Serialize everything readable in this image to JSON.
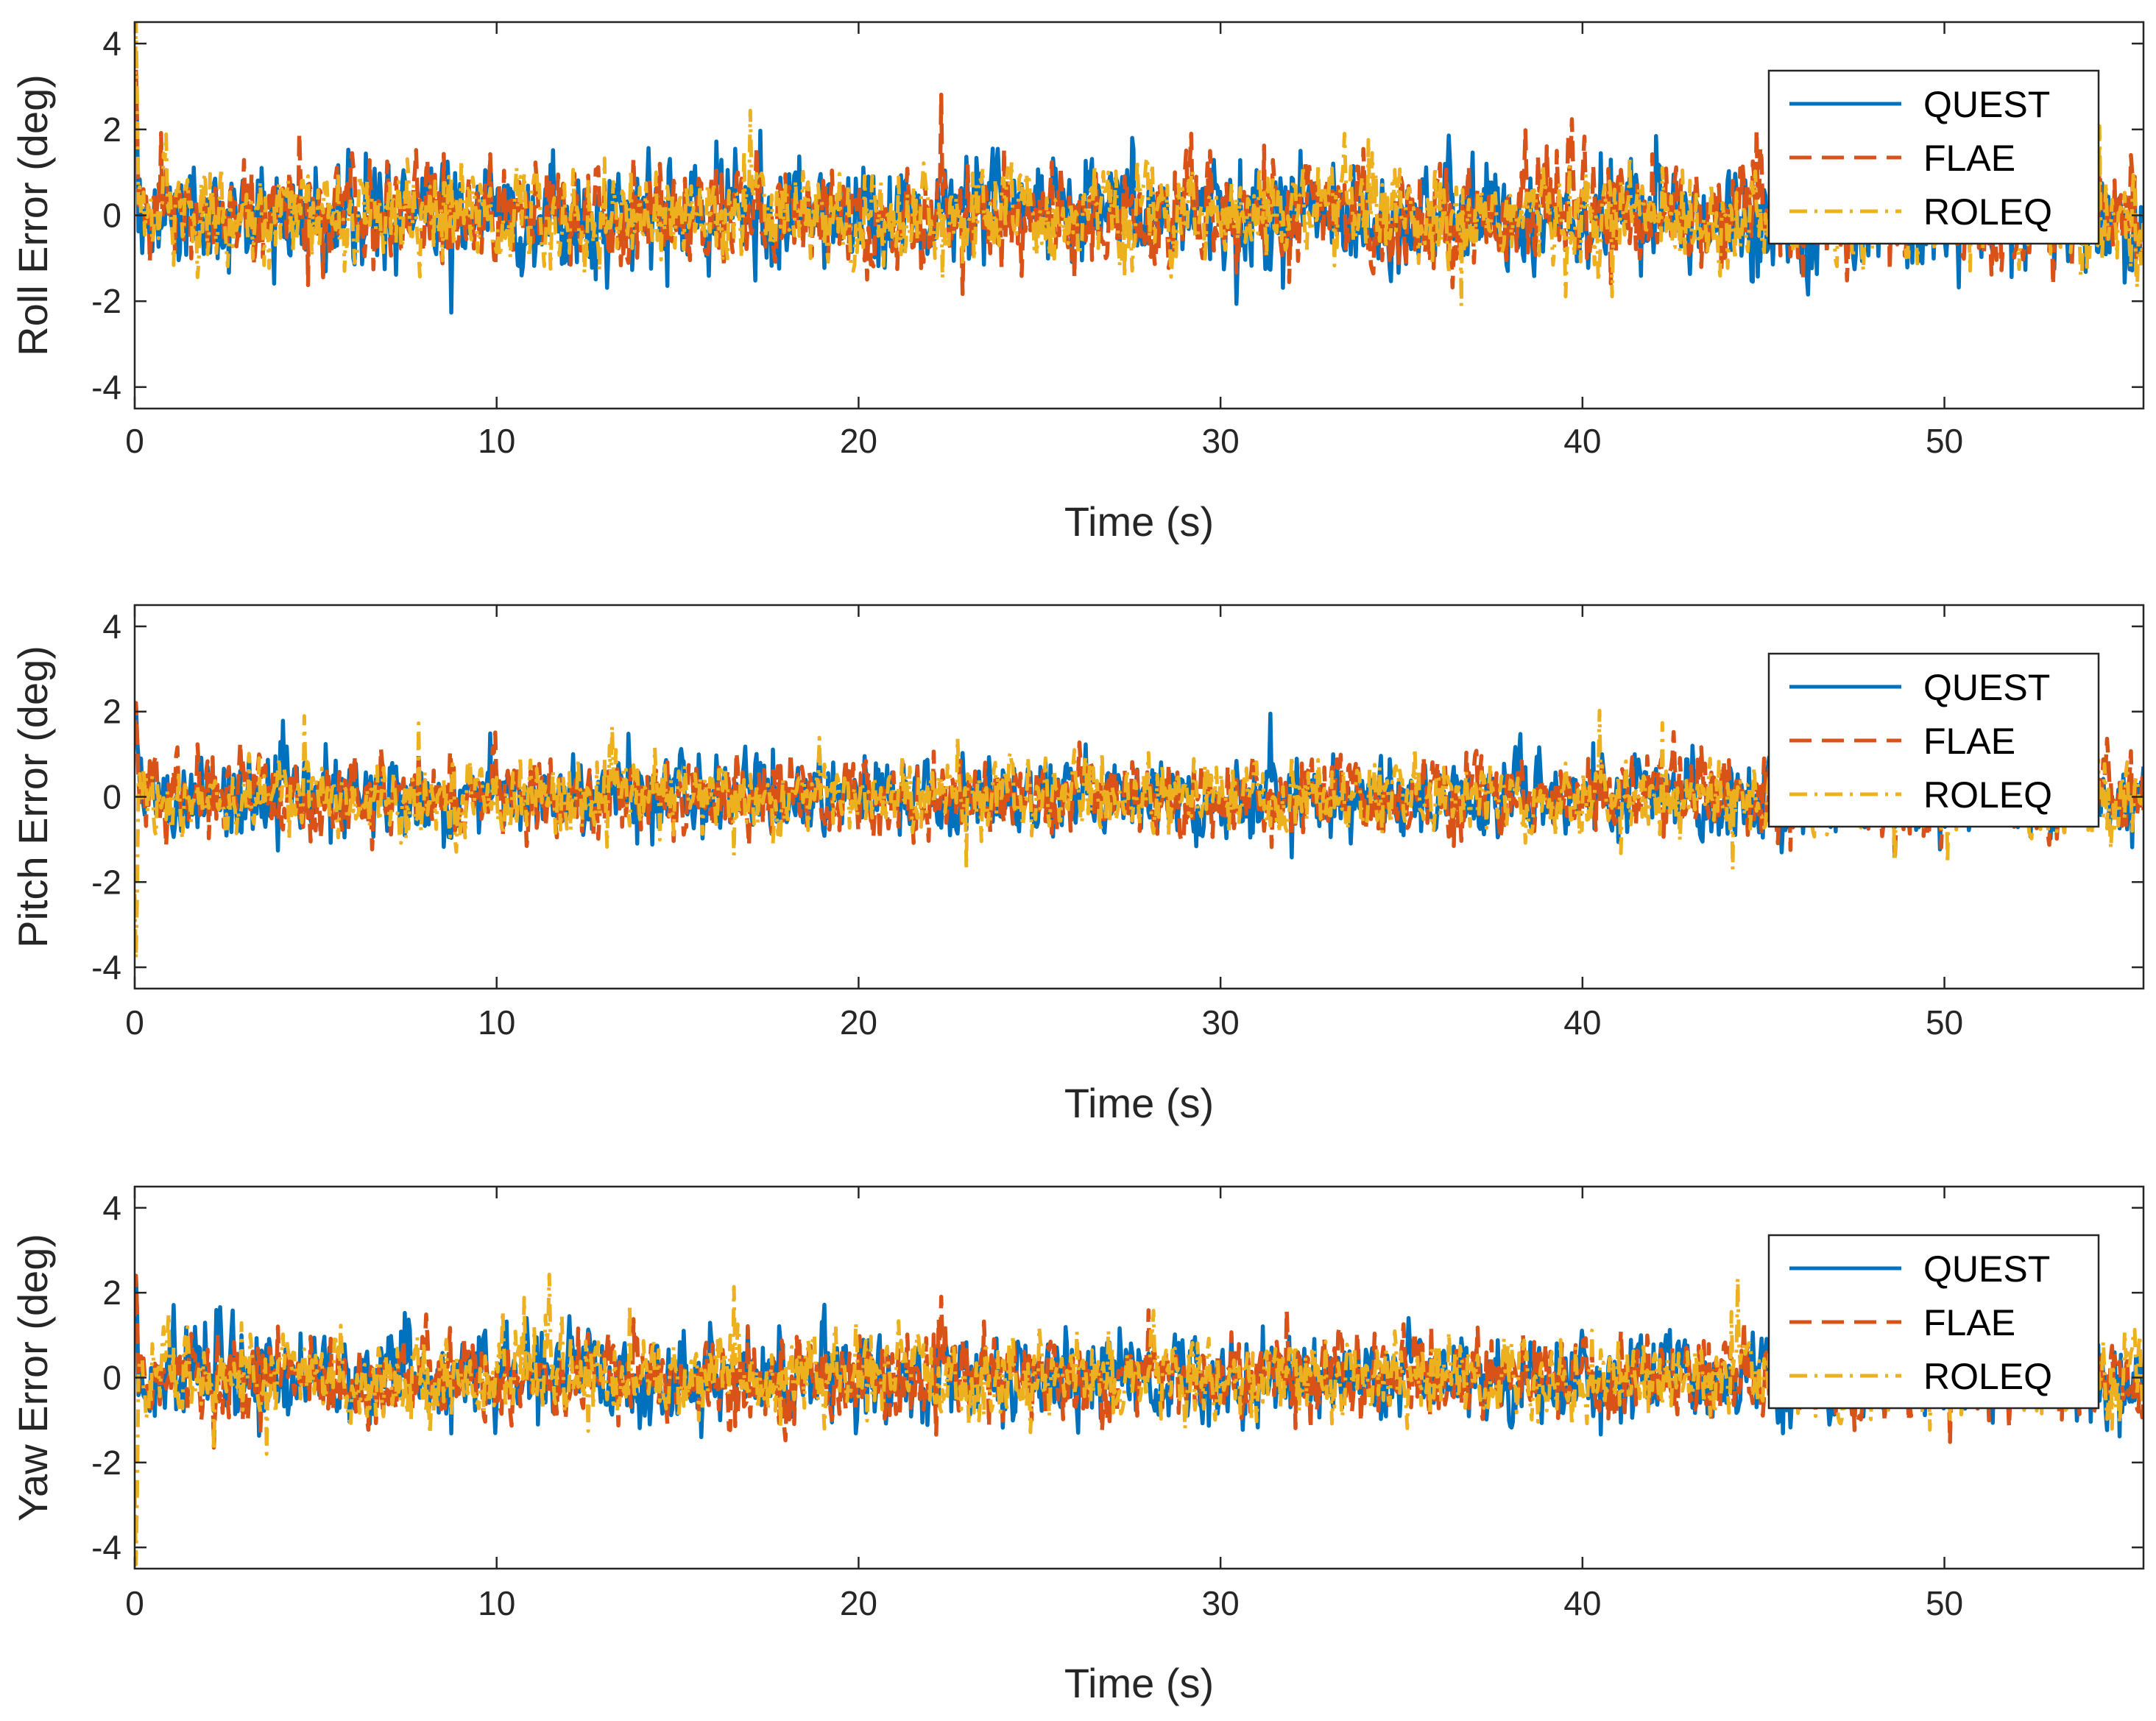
{
  "colors": {
    "quest": "#0072BD",
    "flae": "#D95319",
    "roleq": "#EDB120",
    "axis": "#262626"
  },
  "chart_data": [
    {
      "type": "line",
      "xlabel": "Time (s)",
      "ylabel": "Roll Error (deg)",
      "xlim": [
        0,
        55.5
      ],
      "ylim": [
        -4.5,
        4.5
      ],
      "xticks": [
        0,
        10,
        20,
        30,
        40,
        50
      ],
      "yticks": [
        4,
        2,
        0,
        -2,
        -4
      ],
      "legend_location": "top-right",
      "series": [
        {
          "name": "QUEST",
          "style": "solid",
          "amplitude_std_deg": 0.6,
          "typical_range_deg": [
            -2.3,
            2.4
          ],
          "peak_deg": 3.3,
          "color": "#0072BD"
        },
        {
          "name": "FLAE",
          "style": "dashed",
          "amplitude_std_deg": 0.58,
          "typical_range_deg": [
            -2.3,
            2.4
          ],
          "peak_deg": 3.4,
          "color": "#D95319"
        },
        {
          "name": "ROLEQ",
          "style": "dash-dot",
          "amplitude_std_deg": 0.55,
          "typical_range_deg": [
            -2.2,
            2.3
          ],
          "peak_deg": 4.5,
          "color": "#EDB120"
        }
      ]
    },
    {
      "type": "line",
      "xlabel": "Time (s)",
      "ylabel": "Pitch Error (deg)",
      "xlim": [
        0,
        55.5
      ],
      "ylim": [
        -4.5,
        4.5
      ],
      "xticks": [
        0,
        10,
        20,
        30,
        40,
        50
      ],
      "yticks": [
        4,
        2,
        0,
        -2,
        -4
      ],
      "legend_location": "top-right",
      "series": [
        {
          "name": "QUEST",
          "style": "solid",
          "amplitude_std_deg": 0.45,
          "typical_range_deg": [
            -1.6,
            1.6
          ],
          "peak_deg": 2.2,
          "color": "#0072BD"
        },
        {
          "name": "FLAE",
          "style": "dashed",
          "amplitude_std_deg": 0.44,
          "typical_range_deg": [
            -1.6,
            1.6
          ],
          "peak_deg": 2.2,
          "color": "#D95319"
        },
        {
          "name": "ROLEQ",
          "style": "dash-dot",
          "amplitude_std_deg": 0.42,
          "typical_range_deg": [
            -1.5,
            1.5
          ],
          "peak_deg": -3.8,
          "color": "#EDB120"
        }
      ]
    },
    {
      "type": "line",
      "xlabel": "Time (s)",
      "ylabel": "Yaw Error (deg)",
      "xlim": [
        0,
        55.5
      ],
      "ylim": [
        -4.5,
        4.5
      ],
      "xticks": [
        0,
        10,
        20,
        30,
        40,
        50
      ],
      "yticks": [
        4,
        2,
        0,
        -2,
        -4
      ],
      "legend_location": "top-right",
      "series": [
        {
          "name": "QUEST",
          "style": "solid",
          "amplitude_std_deg": 0.5,
          "typical_range_deg": [
            -1.8,
            1.9
          ],
          "peak_deg": 2.4,
          "color": "#0072BD"
        },
        {
          "name": "FLAE",
          "style": "dashed",
          "amplitude_std_deg": 0.48,
          "typical_range_deg": [
            -1.8,
            1.9
          ],
          "peak_deg": 2.4,
          "color": "#D95319"
        },
        {
          "name": "ROLEQ",
          "style": "dash-dot",
          "amplitude_std_deg": 0.46,
          "typical_range_deg": [
            -1.7,
            1.8
          ],
          "peak_deg": -4.4,
          "color": "#EDB120"
        }
      ]
    }
  ]
}
